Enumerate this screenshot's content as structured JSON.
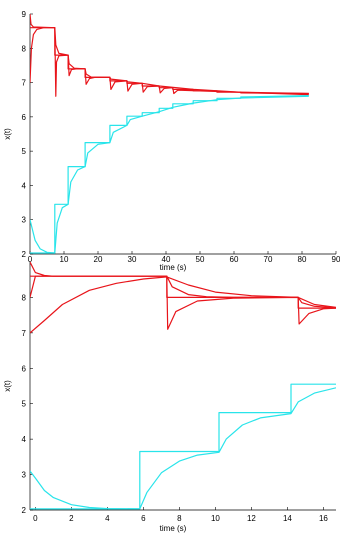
{
  "chart_data": [
    {
      "type": "line",
      "title": "",
      "xlabel": "time (s)",
      "ylabel": "x(t)",
      "xlim": [
        0,
        90
      ],
      "ylim": [
        2,
        9
      ],
      "xticks": [
        "0",
        "10",
        "20",
        "30",
        "40",
        "50",
        "60",
        "70",
        "80",
        "90"
      ],
      "yticks": [
        "2",
        "3",
        "4",
        "5",
        "6",
        "7",
        "8",
        "9"
      ],
      "colors": {
        "red": "#e8141a",
        "cyan": "#29e4ea"
      },
      "series": [
        {
          "color": "red",
          "style": "step",
          "points": [
            [
              0,
              8.6
            ],
            [
              7.3,
              8.6
            ],
            [
              7.3,
              7.8
            ],
            [
              11.2,
              7.8
            ],
            [
              11.2,
              7.4
            ],
            [
              16.2,
              7.4
            ],
            [
              16.2,
              7.15
            ],
            [
              23.5,
              7.15
            ],
            [
              23.5,
              7.05
            ],
            [
              28.5,
              7.05
            ],
            [
              28.5,
              6.98
            ],
            [
              33.0,
              6.98
            ],
            [
              33.0,
              6.9
            ],
            [
              38.0,
              6.9
            ],
            [
              38.0,
              6.85
            ],
            [
              42.0,
              6.85
            ],
            [
              42.0,
              6.8
            ],
            [
              48.0,
              6.8
            ],
            [
              48.0,
              6.76
            ],
            [
              55.0,
              6.76
            ],
            [
              55.0,
              6.72
            ],
            [
              62.0,
              6.72
            ],
            [
              62.0,
              6.7
            ],
            [
              82.0,
              6.68
            ]
          ]
        },
        {
          "color": "red",
          "style": "smooth",
          "points": [
            [
              0,
              7.0
            ],
            [
              0.4,
              8.0
            ],
            [
              1.0,
              8.4
            ],
            [
              2.0,
              8.55
            ],
            [
              4.0,
              8.6
            ],
            [
              7.3,
              8.6
            ],
            [
              7.6,
              6.6
            ],
            [
              7.8,
              7.6
            ],
            [
              8.5,
              7.78
            ],
            [
              11.2,
              7.8
            ],
            [
              11.5,
              7.2
            ],
            [
              12.2,
              7.38
            ],
            [
              13.5,
              7.4
            ],
            [
              16.2,
              7.4
            ],
            [
              16.5,
              6.95
            ],
            [
              17.5,
              7.12
            ],
            [
              19.0,
              7.15
            ],
            [
              23.5,
              7.15
            ],
            [
              23.8,
              6.8
            ],
            [
              25.0,
              7.02
            ],
            [
              28.5,
              7.05
            ],
            [
              28.8,
              6.75
            ],
            [
              30.0,
              6.95
            ],
            [
              33.0,
              6.98
            ],
            [
              33.3,
              6.72
            ],
            [
              34.5,
              6.88
            ],
            [
              38.0,
              6.9
            ],
            [
              38.3,
              6.7
            ],
            [
              39.5,
              6.83
            ],
            [
              42.0,
              6.85
            ],
            [
              42.3,
              6.68
            ],
            [
              43.5,
              6.78
            ],
            [
              82.0,
              6.65
            ]
          ]
        },
        {
          "color": "red",
          "style": "smooth",
          "points": [
            [
              0,
              9.0
            ],
            [
              0.3,
              8.7
            ],
            [
              1.0,
              8.62
            ],
            [
              7.3,
              8.6
            ],
            [
              7.6,
              8.1
            ],
            [
              8.5,
              7.85
            ],
            [
              11.2,
              7.8
            ],
            [
              11.5,
              7.55
            ],
            [
              13.0,
              7.42
            ],
            [
              16.2,
              7.4
            ],
            [
              16.5,
              7.25
            ],
            [
              18.0,
              7.16
            ],
            [
              23.5,
              7.15
            ],
            [
              23.8,
              7.1
            ],
            [
              28.5,
              7.05
            ],
            [
              28.8,
              7.02
            ],
            [
              33.0,
              6.98
            ],
            [
              38.0,
              6.9
            ],
            [
              48.0,
              6.8
            ],
            [
              62.0,
              6.72
            ],
            [
              82.0,
              6.68
            ]
          ]
        },
        {
          "color": "cyan",
          "style": "step",
          "points": [
            [
              0,
              2.03
            ],
            [
              7.3,
              2.03
            ],
            [
              7.3,
              3.45
            ],
            [
              11.2,
              3.45
            ],
            [
              11.2,
              4.55
            ],
            [
              16.2,
              4.55
            ],
            [
              16.2,
              5.25
            ],
            [
              23.5,
              5.25
            ],
            [
              23.5,
              5.75
            ],
            [
              28.5,
              5.75
            ],
            [
              28.5,
              6.02
            ],
            [
              33.0,
              6.02
            ],
            [
              33.0,
              6.12
            ],
            [
              38.0,
              6.12
            ],
            [
              38.0,
              6.25
            ],
            [
              42.0,
              6.25
            ],
            [
              42.0,
              6.38
            ],
            [
              48.0,
              6.38
            ],
            [
              48.0,
              6.47
            ],
            [
              55.0,
              6.47
            ],
            [
              55.0,
              6.54
            ],
            [
              62.0,
              6.54
            ],
            [
              62.0,
              6.58
            ],
            [
              82.0,
              6.62
            ]
          ]
        },
        {
          "color": "cyan",
          "style": "smooth",
          "points": [
            [
              0,
              3.0
            ],
            [
              0.5,
              2.8
            ],
            [
              1.5,
              2.4
            ],
            [
              3.0,
              2.15
            ],
            [
              5.0,
              2.05
            ],
            [
              7.3,
              2.03
            ],
            [
              8.0,
              2.9
            ],
            [
              9.5,
              3.35
            ],
            [
              11.2,
              3.45
            ],
            [
              12.0,
              4.1
            ],
            [
              14.0,
              4.45
            ],
            [
              16.2,
              4.55
            ],
            [
              17.0,
              4.95
            ],
            [
              20.0,
              5.2
            ],
            [
              23.5,
              5.25
            ],
            [
              24.5,
              5.55
            ],
            [
              28.5,
              5.75
            ],
            [
              29.5,
              5.92
            ],
            [
              33.0,
              6.02
            ],
            [
              38.0,
              6.15
            ],
            [
              42.0,
              6.28
            ],
            [
              48.0,
              6.4
            ],
            [
              55.0,
              6.5
            ],
            [
              62.0,
              6.55
            ],
            [
              82.0,
              6.6
            ]
          ]
        }
      ]
    },
    {
      "type": "line",
      "title": "",
      "xlabel": "time (s)",
      "ylabel": "x(t)",
      "xlim": [
        -0.3,
        16.7
      ],
      "ylim": [
        2,
        9
      ],
      "xticks": [
        "0",
        "2",
        "4",
        "6",
        "8",
        "10",
        "12",
        "14",
        "16"
      ],
      "yticks": [
        "2",
        "3",
        "4",
        "5",
        "6",
        "7",
        "8"
      ],
      "colors": {
        "red": "#e8141a",
        "cyan": "#29e4ea"
      },
      "series": [
        {
          "color": "red",
          "style": "step",
          "points": [
            [
              -0.3,
              8.6
            ],
            [
              7.3,
              8.6
            ],
            [
              7.3,
              8.0
            ],
            [
              14.6,
              8.0
            ],
            [
              14.6,
              7.7
            ],
            [
              16.7,
              7.7
            ]
          ]
        },
        {
          "color": "red",
          "style": "smooth",
          "points": [
            [
              -0.3,
              9.0
            ],
            [
              0.0,
              8.7
            ],
            [
              0.5,
              8.62
            ],
            [
              1.0,
              8.6
            ],
            [
              7.3,
              8.6
            ],
            [
              7.6,
              8.3
            ],
            [
              8.5,
              8.08
            ],
            [
              9.5,
              8.02
            ],
            [
              11.0,
              8.0
            ],
            [
              14.6,
              8.0
            ],
            [
              14.8,
              7.85
            ],
            [
              15.5,
              7.75
            ],
            [
              16.7,
              7.71
            ]
          ]
        },
        {
          "color": "red",
          "style": "smooth",
          "points": [
            [
              -0.3,
              8.0
            ],
            [
              0.0,
              8.6
            ],
            [
              1.0,
              8.6
            ],
            [
              7.3,
              8.6
            ],
            [
              7.35,
              7.1
            ],
            [
              7.8,
              7.6
            ],
            [
              9.0,
              7.9
            ],
            [
              11.0,
              7.98
            ],
            [
              14.6,
              8.0
            ],
            [
              14.65,
              7.25
            ],
            [
              15.2,
              7.55
            ],
            [
              16.0,
              7.68
            ],
            [
              16.7,
              7.7
            ]
          ]
        },
        {
          "color": "red",
          "style": "smooth",
          "points": [
            [
              -0.3,
              7.0
            ],
            [
              0.5,
              7.35
            ],
            [
              1.5,
              7.8
            ],
            [
              3.0,
              8.2
            ],
            [
              4.5,
              8.4
            ],
            [
              6.0,
              8.52
            ],
            [
              7.3,
              8.58
            ],
            [
              8.5,
              8.35
            ],
            [
              10.0,
              8.15
            ],
            [
              12.0,
              8.05
            ],
            [
              14.6,
              8.0
            ],
            [
              15.5,
              7.8
            ],
            [
              16.7,
              7.72
            ]
          ]
        },
        {
          "color": "cyan",
          "style": "step",
          "points": [
            [
              -0.3,
              2.03
            ],
            [
              5.8,
              2.03
            ],
            [
              5.8,
              3.65
            ],
            [
              10.2,
              3.65
            ],
            [
              10.2,
              4.75
            ],
            [
              14.2,
              4.75
            ],
            [
              14.2,
              5.55
            ],
            [
              16.7,
              5.55
            ]
          ]
        },
        {
          "color": "cyan",
          "style": "smooth",
          "points": [
            [
              -0.3,
              3.1
            ],
            [
              0.0,
              2.9
            ],
            [
              0.5,
              2.55
            ],
            [
              1.0,
              2.35
            ],
            [
              2.0,
              2.15
            ],
            [
              3.0,
              2.07
            ],
            [
              4.0,
              2.04
            ],
            [
              5.8,
              2.03
            ],
            [
              6.2,
              2.5
            ],
            [
              7.0,
              3.05
            ],
            [
              8.0,
              3.38
            ],
            [
              9.0,
              3.55
            ],
            [
              10.2,
              3.63
            ],
            [
              10.6,
              4.0
            ],
            [
              11.5,
              4.4
            ],
            [
              12.5,
              4.6
            ],
            [
              14.2,
              4.72
            ],
            [
              14.6,
              5.05
            ],
            [
              15.5,
              5.3
            ],
            [
              16.7,
              5.45
            ]
          ]
        }
      ]
    }
  ]
}
